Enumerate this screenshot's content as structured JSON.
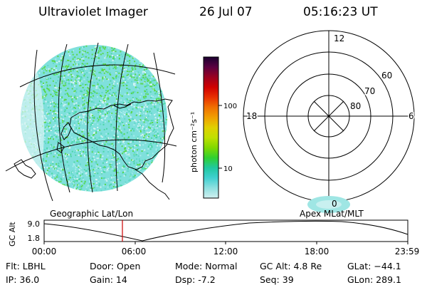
{
  "header": {
    "title": "Ultraviolet Imager",
    "date": "26 Jul 07",
    "time": "05:16:23 UT"
  },
  "left_panel": {
    "label": "Geographic Lat/Lon"
  },
  "colorbar": {
    "unit_label": "photon cm⁻²s⁻¹",
    "tick_labels": [
      "100",
      "10"
    ],
    "colors": [
      "#1a0030",
      "#5a0040",
      "#9a0020",
      "#d00000",
      "#e83000",
      "#f07000",
      "#f0a000",
      "#e0d000",
      "#c0e000",
      "#80d800",
      "#30d030",
      "#20c8a0",
      "#40d0d0",
      "#90e0e0",
      "#d0f0f0"
    ]
  },
  "right_panel": {
    "label": "Apex MLat/MLT",
    "mlt_labels": {
      "top": "12",
      "left": "18",
      "right": "6",
      "bottom": "0"
    },
    "lat_labels": [
      "60",
      "70",
      "80"
    ]
  },
  "timeline": {
    "ylabel": "GC Alt",
    "y_ticks": [
      "9.0",
      "1.8"
    ],
    "x_ticks": [
      "00:00",
      "06:00",
      "12:00",
      "18:00",
      "23:59"
    ],
    "current_time": "05:16",
    "marker_color": "#cc0000"
  },
  "info": {
    "flt": "Flt: LBHL",
    "ip": "IP: 36.0",
    "door": "Door: Open",
    "gain": "Gain: 14",
    "mode": "Mode: Normal",
    "dsp": "Dsp:    -7.2",
    "gc_alt": "GC Alt: 4.8 Re",
    "seq": "Seq: 39",
    "glat": "GLat: −44.1",
    "glon": "GLon: 289.1"
  },
  "colors": {
    "disk_base": "#7fe0dc",
    "disk_bright": "#4cd6a4",
    "disk_pale": "#d8f4f4",
    "green_speck": "#58d84a"
  }
}
